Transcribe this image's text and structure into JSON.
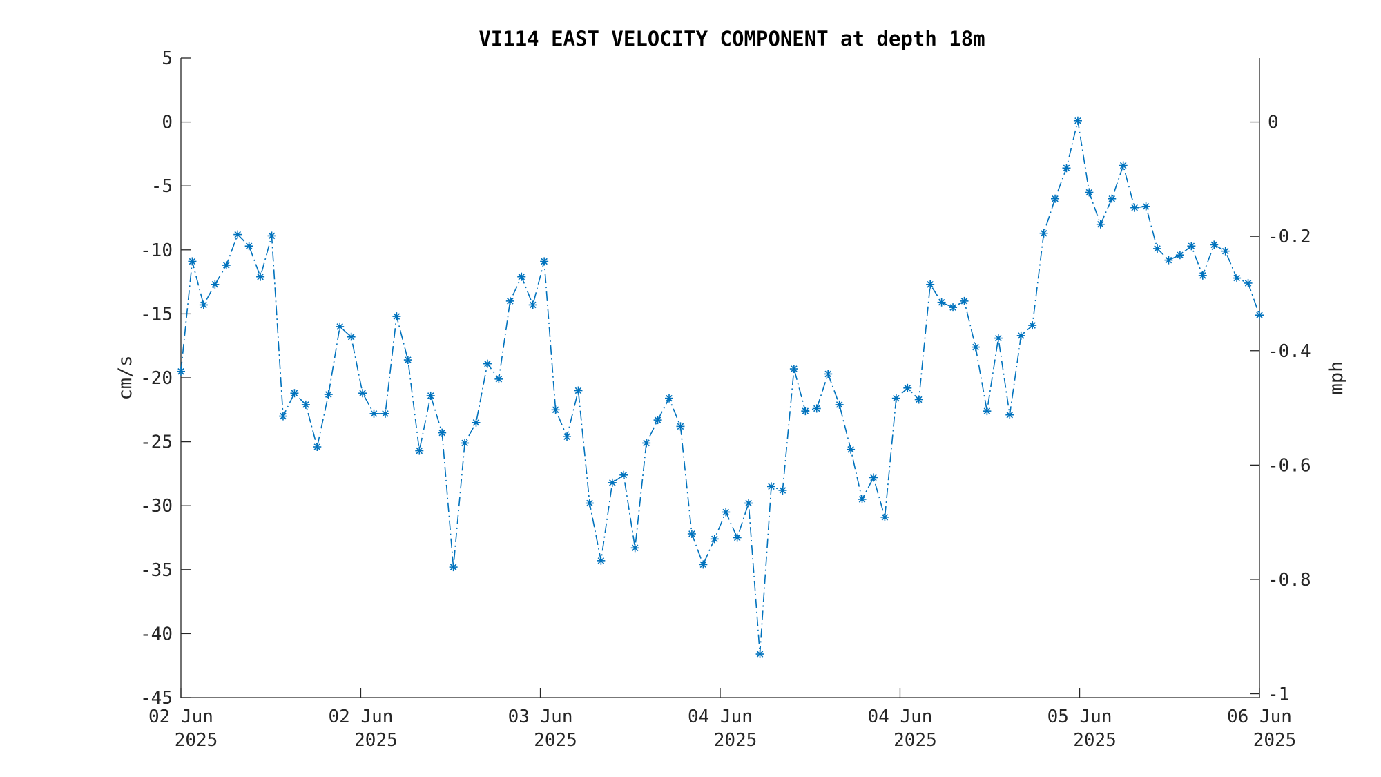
{
  "chart_data": {
    "type": "line",
    "title": "VI114 EAST VELOCITY COMPONENT at depth 18m",
    "ylabel": "cm/s",
    "y2label": "mph",
    "ylim": [
      -45,
      5
    ],
    "y2lim": [
      -1.0066,
      0.1118
    ],
    "yticks": [
      "5",
      "0",
      "-5",
      "-10",
      "-15",
      "-20",
      "-25",
      "-30",
      "-35",
      "-40",
      "-45"
    ],
    "y2ticks": [
      "0",
      "-0.2",
      "-0.4",
      "-0.6",
      "-0.8",
      "-1"
    ],
    "xlim": [
      0,
      4
    ],
    "xticks": [
      {
        "x": 0,
        "line1": "02 Jun",
        "line2": "2025"
      },
      {
        "x": 0.667,
        "line1": "02 Jun",
        "line2": "2025"
      },
      {
        "x": 1.333,
        "line1": "03 Jun",
        "line2": "2025"
      },
      {
        "x": 2.0,
        "line1": "04 Jun",
        "line2": "2025"
      },
      {
        "x": 2.667,
        "line1": "04 Jun",
        "line2": "2025"
      },
      {
        "x": 3.333,
        "line1": "05 Jun",
        "line2": "2025"
      },
      {
        "x": 4.0,
        "line1": "06 Jun",
        "line2": "2025"
      }
    ],
    "grid": false,
    "marker": "asterisk",
    "line_style": "dash-dot",
    "color": "#0072BD",
    "series": [
      {
        "values": [
          -19.5,
          -10.9,
          -14.3,
          -12.7,
          -11.2,
          -8.8,
          -9.7,
          -12.1,
          -8.9,
          -23.0,
          -21.2,
          -22.1,
          -25.4,
          -21.3,
          -16.0,
          -16.8,
          -21.2,
          -22.8,
          -22.8,
          -15.2,
          -18.6,
          -25.7,
          -21.4,
          -24.3,
          -34.8,
          -25.1,
          -23.5,
          -18.9,
          -20.1,
          -14.0,
          -12.1,
          -14.3,
          -10.9,
          -22.5,
          -24.6,
          -21.0,
          -29.8,
          -34.3,
          -28.2,
          -27.6,
          -33.3,
          -25.1,
          -23.3,
          -21.6,
          -23.8,
          -32.2,
          -34.6,
          -32.6,
          -30.5,
          -32.5,
          -29.8,
          -41.6,
          -28.5,
          -28.8,
          -19.3,
          -22.6,
          -22.4,
          -19.7,
          -22.1,
          -25.6,
          -29.5,
          -27.8,
          -30.9,
          -21.6,
          -20.8,
          -21.7,
          -12.7,
          -14.1,
          -14.5,
          -14.0,
          -17.6,
          -22.6,
          -16.9,
          -22.9,
          -16.7,
          -15.9,
          -8.7,
          -6.0,
          -3.6,
          0.1,
          -5.5,
          -8.0,
          -6.0,
          -3.4,
          -6.7,
          -6.6,
          -9.9,
          -10.8,
          -10.4,
          -9.7,
          -12.0,
          -9.6,
          -10.1,
          -12.2,
          -12.6,
          -15.1
        ]
      }
    ]
  }
}
